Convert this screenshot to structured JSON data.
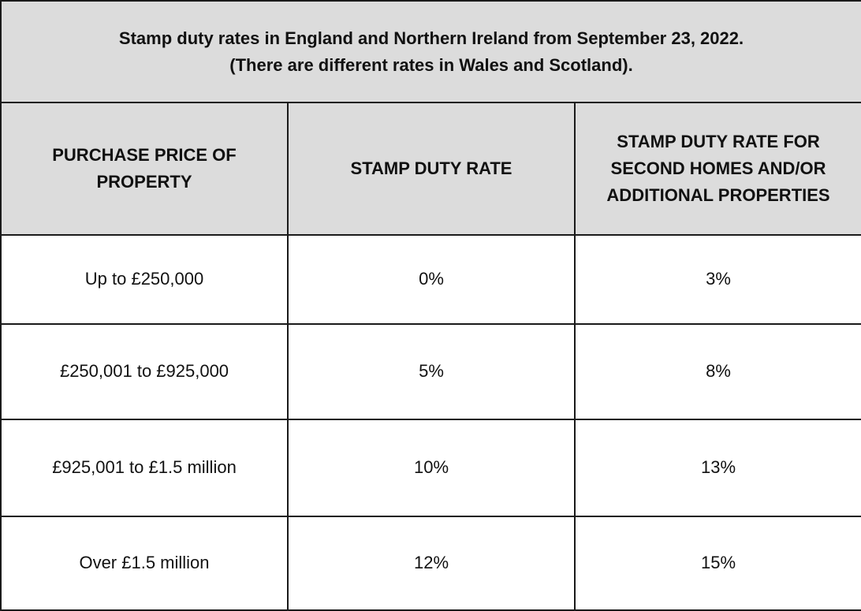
{
  "caption": {
    "line1": "Stamp duty rates in England and Northern Ireland from September 23, 2022.",
    "line2": "(There are different rates in Wales and Scotland)."
  },
  "headers": [
    "PURCHASE PRICE OF PROPERTY",
    "STAMP DUTY RATE",
    "STAMP DUTY RATE FOR SECOND HOMES AND/OR ADDITIONAL PROPERTIES"
  ],
  "rows": [
    {
      "price": "Up to £250,000",
      "rate": "0%",
      "second_rate": "3%"
    },
    {
      "price": "£250,001 to £925,000",
      "rate": "5%",
      "second_rate": "8%"
    },
    {
      "price": "£925,001 to £1.5 million",
      "rate": "10%",
      "second_rate": "13%"
    },
    {
      "price": "Over £1.5 million",
      "rate": "12%",
      "second_rate": "15%"
    }
  ],
  "colors": {
    "header_background": "#dcdcdc",
    "border": "#1a1a1a",
    "body_background": "#ffffff"
  }
}
